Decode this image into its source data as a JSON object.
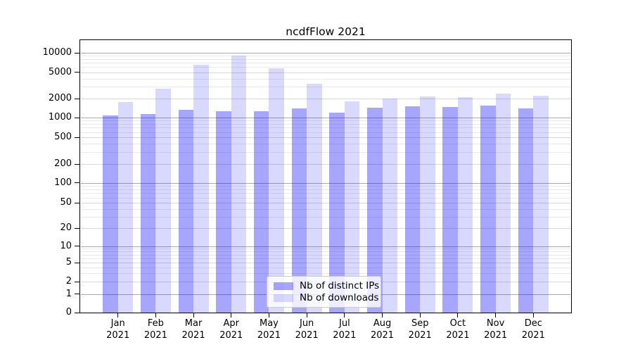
{
  "title": "ncdfFlow 2021",
  "chart_data": {
    "type": "bar",
    "title": "ncdfFlow 2021",
    "categories": [
      "Jan",
      "Feb",
      "Mar",
      "Apr",
      "May",
      "Jun",
      "Jul",
      "Aug",
      "Sep",
      "Oct",
      "Nov",
      "Dec"
    ],
    "x_tick_second_line": "2021",
    "series": [
      {
        "name": "Nb of distinct IPs",
        "color": "#0000ff",
        "alpha": 0.35,
        "rendered_color": "#a6a6fa",
        "values": [
          1080,
          1130,
          1330,
          1270,
          1260,
          1390,
          1200,
          1430,
          1500,
          1460,
          1560,
          1400
        ]
      },
      {
        "name": "Nb of downloads",
        "color": "#0000ff",
        "alpha": 0.15,
        "rendered_color": "#dadafd",
        "values": [
          1760,
          2850,
          6500,
          9100,
          5800,
          3350,
          1810,
          2020,
          2140,
          2080,
          2380,
          2210
        ]
      }
    ],
    "y_ticks": [
      0,
      1,
      2,
      5,
      10,
      20,
      50,
      100,
      200,
      500,
      1000,
      2000,
      5000,
      10000
    ],
    "yscale": "symlog",
    "ylim": [
      0,
      15000
    ],
    "grid": true,
    "legend_position": "lower center"
  }
}
